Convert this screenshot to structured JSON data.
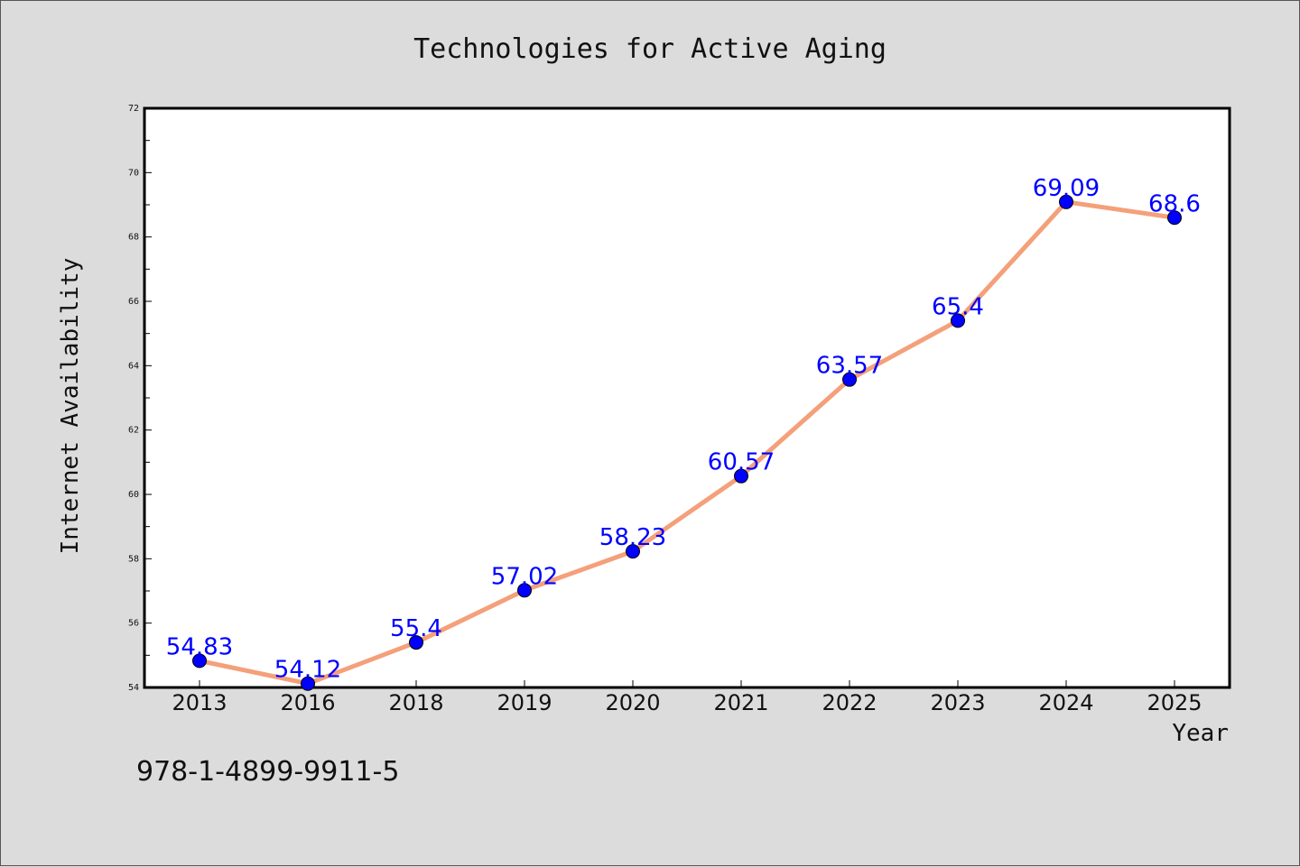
{
  "chart_data": {
    "type": "line",
    "title": "Technologies for Active Aging",
    "xlabel": "Year",
    "ylabel": "Internet Availability",
    "categories": [
      "2013",
      "2016",
      "2018",
      "2019",
      "2020",
      "2021",
      "2022",
      "2023",
      "2024",
      "2025"
    ],
    "series": [
      {
        "values": [
          54.83,
          54.12,
          55.4,
          57.02,
          58.23,
          60.57,
          63.57,
          65.4,
          69.09,
          68.6
        ],
        "line_color": "#f4a07a",
        "marker_color": "#0000ff"
      }
    ],
    "data_labels": [
      "54.83",
      "54.12",
      "55.4",
      "57.02",
      "58.23",
      "60.57",
      "63.57",
      "65.4",
      "69.09",
      "68.6"
    ],
    "ylim": [
      54,
      72
    ],
    "yticks": [
      "54",
      "56",
      "58",
      "60",
      "62",
      "64",
      "66",
      "68",
      "70",
      "72"
    ],
    "grid": false,
    "legend": false
  },
  "footer": {
    "isbn": "978-1-4899-9911-5"
  }
}
